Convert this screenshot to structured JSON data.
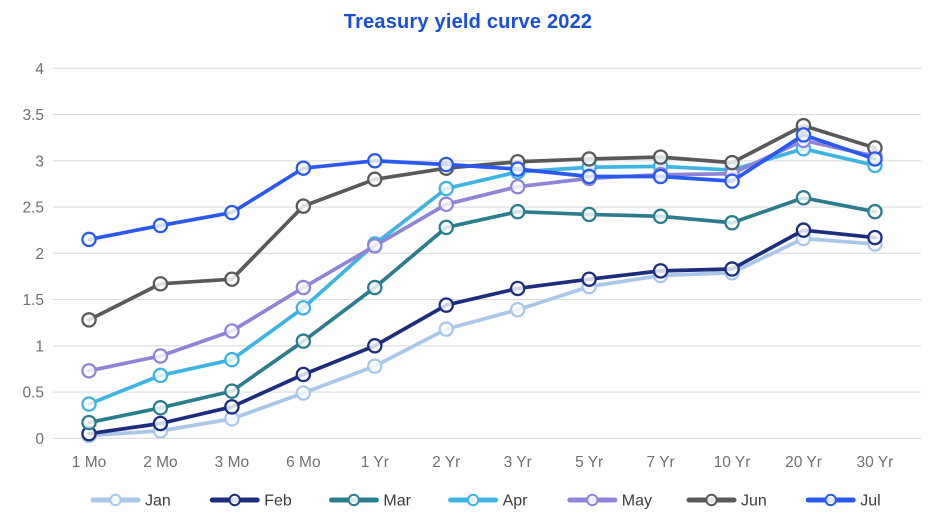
{
  "title": "Treasury yield curve 2022",
  "chart_data": {
    "type": "line",
    "title": "Treasury yield curve 2022",
    "categories": [
      "1 Mo",
      "2 Mo",
      "3 Mo",
      "6 Mo",
      "1 Yr",
      "2 Yr",
      "3 Yr",
      "5 Yr",
      "7 Yr",
      "10 Yr",
      "20 Yr",
      "30 Yr"
    ],
    "series": [
      {
        "name": "Jan",
        "color": "#A9C7E9",
        "values": [
          0.03,
          0.08,
          0.21,
          0.49,
          0.78,
          1.18,
          1.39,
          1.64,
          1.76,
          1.79,
          2.16,
          2.1
        ]
      },
      {
        "name": "Feb",
        "color": "#1C2D7D",
        "values": [
          0.05,
          0.16,
          0.34,
          0.69,
          1.0,
          1.44,
          1.62,
          1.72,
          1.81,
          1.83,
          2.25,
          2.17
        ]
      },
      {
        "name": "Mar",
        "color": "#2B7C8D",
        "values": [
          0.17,
          0.33,
          0.51,
          1.05,
          1.63,
          2.28,
          2.45,
          2.42,
          2.4,
          2.33,
          2.6,
          2.45
        ]
      },
      {
        "name": "Apr",
        "color": "#3FB3E4",
        "values": [
          0.37,
          0.68,
          0.85,
          1.41,
          2.1,
          2.7,
          2.88,
          2.93,
          2.94,
          2.9,
          3.13,
          2.95
        ]
      },
      {
        "name": "May",
        "color": "#8F85D8",
        "values": [
          0.73,
          0.89,
          1.16,
          1.63,
          2.08,
          2.53,
          2.72,
          2.81,
          2.85,
          2.86,
          3.22,
          3.05
        ]
      },
      {
        "name": "Jun",
        "color": "#58595B",
        "values": [
          1.28,
          1.67,
          1.72,
          2.51,
          2.8,
          2.92,
          2.99,
          3.02,
          3.04,
          2.98,
          3.38,
          3.14
        ]
      },
      {
        "name": "Jul",
        "color": "#2A59F0",
        "values": [
          2.15,
          2.3,
          2.44,
          2.92,
          3.0,
          2.96,
          2.91,
          2.83,
          2.83,
          2.78,
          3.28,
          3.02
        ]
      }
    ],
    "ylabel": "",
    "xlabel": "",
    "ylim": [
      0,
      4
    ],
    "ytick_step": 0.5,
    "grid": "horizontal",
    "legend_position": "bottom",
    "marker": "open-circle"
  },
  "colors": {
    "title": "#1B4ED6",
    "axis_text": "#6F6F6F",
    "legend_text": "#3C3C3C",
    "gridline": "#DCDCDC",
    "background": "#FFFFFF"
  }
}
